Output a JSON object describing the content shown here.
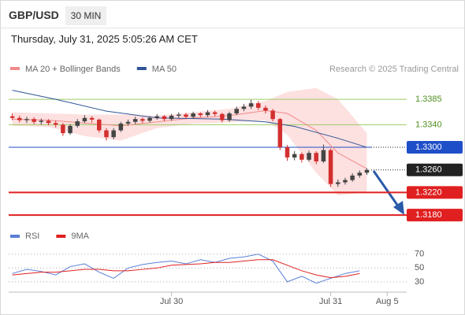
{
  "header": {
    "symbol": "GBP/USD",
    "timeframe": "30 MIN",
    "timestamp": "Thursday, July 31, 2025 5:05:26 AM CET"
  },
  "chart_data": [
    {
      "type": "candlestick",
      "source": "Research © 2025 Trading Central",
      "xlim": [
        -0.5,
        54.5
      ],
      "ylim": [
        1.3162,
        1.342
      ],
      "xticks": [
        {
          "value": 22,
          "label": "Jul 30"
        },
        {
          "value": 44,
          "label": "Jul 31"
        },
        {
          "value": 51.8,
          "label": "Aug 5"
        }
      ],
      "up_color": "#444444",
      "down_color": "#d32f2f",
      "ohlc": [
        [
          1.3355,
          1.336,
          1.3348,
          1.3352
        ],
        [
          1.3352,
          1.3356,
          1.3344,
          1.3348
        ],
        [
          1.3348,
          1.3354,
          1.3343,
          1.335
        ],
        [
          1.335,
          1.3353,
          1.3341,
          1.3345
        ],
        [
          1.3345,
          1.3351,
          1.334,
          1.3347
        ],
        [
          1.3347,
          1.335,
          1.3339,
          1.3343
        ],
        [
          1.3343,
          1.3347,
          1.3335,
          1.334
        ],
        [
          1.334,
          1.3343,
          1.332,
          1.3325
        ],
        [
          1.3325,
          1.3341,
          1.3322,
          1.3338
        ],
        [
          1.3338,
          1.335,
          1.3335,
          1.3346
        ],
        [
          1.3346,
          1.3357,
          1.3343,
          1.3352
        ],
        [
          1.3352,
          1.3355,
          1.3344,
          1.3349
        ],
        [
          1.3349,
          1.3351,
          1.3326,
          1.333
        ],
        [
          1.333,
          1.3334,
          1.3312,
          1.3318
        ],
        [
          1.3318,
          1.3334,
          1.3314,
          1.333
        ],
        [
          1.333,
          1.3345,
          1.3327,
          1.3342
        ],
        [
          1.3342,
          1.3349,
          1.3338,
          1.3345
        ],
        [
          1.3345,
          1.3354,
          1.3341,
          1.335
        ],
        [
          1.335,
          1.3353,
          1.3343,
          1.3347
        ],
        [
          1.3347,
          1.3355,
          1.3344,
          1.3352
        ],
        [
          1.3352,
          1.3359,
          1.3349,
          1.3355
        ],
        [
          1.3355,
          1.3357,
          1.3346,
          1.335
        ],
        [
          1.335,
          1.3359,
          1.3347,
          1.3356
        ],
        [
          1.3356,
          1.3362,
          1.3352,
          1.3358
        ],
        [
          1.3358,
          1.3361,
          1.335,
          1.3354
        ],
        [
          1.3354,
          1.3363,
          1.3351,
          1.336
        ],
        [
          1.336,
          1.3362,
          1.3353,
          1.3357
        ],
        [
          1.3357,
          1.3366,
          1.3354,
          1.3362
        ],
        [
          1.3362,
          1.3365,
          1.3355,
          1.3359
        ],
        [
          1.3359,
          1.3361,
          1.3344,
          1.3348
        ],
        [
          1.3348,
          1.3363,
          1.3345,
          1.336
        ],
        [
          1.336,
          1.3372,
          1.3357,
          1.3368
        ],
        [
          1.3368,
          1.3377,
          1.3364,
          1.3372
        ],
        [
          1.3372,
          1.3384,
          1.3368,
          1.3378
        ],
        [
          1.3378,
          1.3382,
          1.3366,
          1.337
        ],
        [
          1.337,
          1.3374,
          1.336,
          1.3365
        ],
        [
          1.3365,
          1.3368,
          1.3346,
          1.335
        ],
        [
          1.335,
          1.3352,
          1.3295,
          1.33
        ],
        [
          1.33,
          1.3304,
          1.3276,
          1.3282
        ],
        [
          1.3282,
          1.3293,
          1.3277,
          1.3288
        ],
        [
          1.3288,
          1.3291,
          1.3273,
          1.3278
        ],
        [
          1.3278,
          1.3294,
          1.3275,
          1.329
        ],
        [
          1.329,
          1.3293,
          1.327,
          1.3275
        ],
        [
          1.3275,
          1.3305,
          1.3272,
          1.3295
        ],
        [
          1.3295,
          1.3298,
          1.323,
          1.3235
        ],
        [
          1.3235,
          1.3243,
          1.323,
          1.3238
        ],
        [
          1.3238,
          1.3246,
          1.3234,
          1.3242
        ],
        [
          1.3242,
          1.3254,
          1.3239,
          1.325
        ],
        [
          1.325,
          1.3259,
          1.3246,
          1.3255
        ],
        [
          1.3255,
          1.3263,
          1.3251,
          1.326
        ]
      ],
      "series": [
        {
          "name": "MA 20 + Bollinger Bands",
          "color": "#f08a8a",
          "band_color": "#fde0e0",
          "x": [
            0,
            5,
            10,
            15,
            20,
            25,
            30,
            35,
            38,
            42,
            45,
            49
          ],
          "values": [
            1.335,
            1.3348,
            1.3343,
            1.3338,
            1.3345,
            1.3352,
            1.3356,
            1.3365,
            1.336,
            1.333,
            1.329,
            1.3262
          ],
          "upper": [
            1.3362,
            1.336,
            1.3358,
            1.3358,
            1.3356,
            1.3362,
            1.3368,
            1.3382,
            1.3398,
            1.3405,
            1.3385,
            1.3325
          ],
          "lower": [
            1.3338,
            1.3336,
            1.332,
            1.3312,
            1.3334,
            1.3342,
            1.3344,
            1.3348,
            1.3322,
            1.3255,
            1.3215,
            1.322
          ]
        },
        {
          "name": "MA 50",
          "color": "#2f5597",
          "x": [
            0,
            6,
            13,
            20,
            29,
            35,
            39,
            45,
            49
          ],
          "values": [
            1.3401,
            1.3385,
            1.3364,
            1.3352,
            1.335,
            1.3345,
            1.3337,
            1.3316,
            1.33
          ]
        }
      ],
      "levels": [
        {
          "value": 1.3385,
          "label": "1.3385",
          "color": "#9ccc65",
          "text_color": "#4f8f1f",
          "box": false,
          "line": "solid"
        },
        {
          "value": 1.334,
          "label": "1.3340",
          "color": "#9ccc65",
          "text_color": "#4f8f1f",
          "box": false,
          "line": "solid"
        },
        {
          "value": 1.33,
          "label": "1.3300",
          "color": "#1f4fc8",
          "text_color": "#ffffff",
          "box": true,
          "line": "solid-dotted"
        },
        {
          "value": 1.326,
          "label": "1.3260",
          "color": "#222222",
          "text_color": "#ffffff",
          "box": true,
          "line": "dotted"
        },
        {
          "value": 1.322,
          "label": "1.3220",
          "color": "#e02020",
          "text_color": "#ffffff",
          "box": true,
          "line": "solid"
        },
        {
          "value": 1.318,
          "label": "1.3180",
          "color": "#e02020",
          "text_color": "#ffffff",
          "box": true,
          "line": "solid"
        }
      ]
    },
    {
      "type": "line",
      "xlim": [
        -0.5,
        54.5
      ],
      "ylim": [
        15,
        80
      ],
      "yticks": [
        30,
        50,
        70
      ],
      "series": [
        {
          "name": "RSI",
          "color": "#5b7fd6",
          "x": [
            0,
            2,
            4,
            6,
            8,
            10,
            12,
            14,
            16,
            18,
            20,
            22,
            24,
            26,
            28,
            30,
            32,
            34,
            36,
            38,
            40,
            42,
            44,
            46,
            48
          ],
          "values": [
            42,
            48,
            45,
            40,
            52,
            56,
            44,
            35,
            50,
            55,
            58,
            60,
            56,
            62,
            58,
            64,
            66,
            70,
            60,
            30,
            38,
            28,
            35,
            42,
            46
          ]
        },
        {
          "name": "9MA",
          "color": "#e02020",
          "x": [
            0,
            2,
            4,
            6,
            8,
            10,
            12,
            14,
            16,
            18,
            20,
            22,
            24,
            26,
            28,
            30,
            32,
            34,
            36,
            38,
            40,
            42,
            44,
            46,
            48
          ],
          "values": [
            40,
            42,
            44,
            44,
            46,
            48,
            48,
            46,
            46,
            48,
            50,
            54,
            55,
            56,
            58,
            58,
            60,
            62,
            62,
            54,
            46,
            40,
            36,
            38,
            42
          ]
        }
      ]
    }
  ]
}
